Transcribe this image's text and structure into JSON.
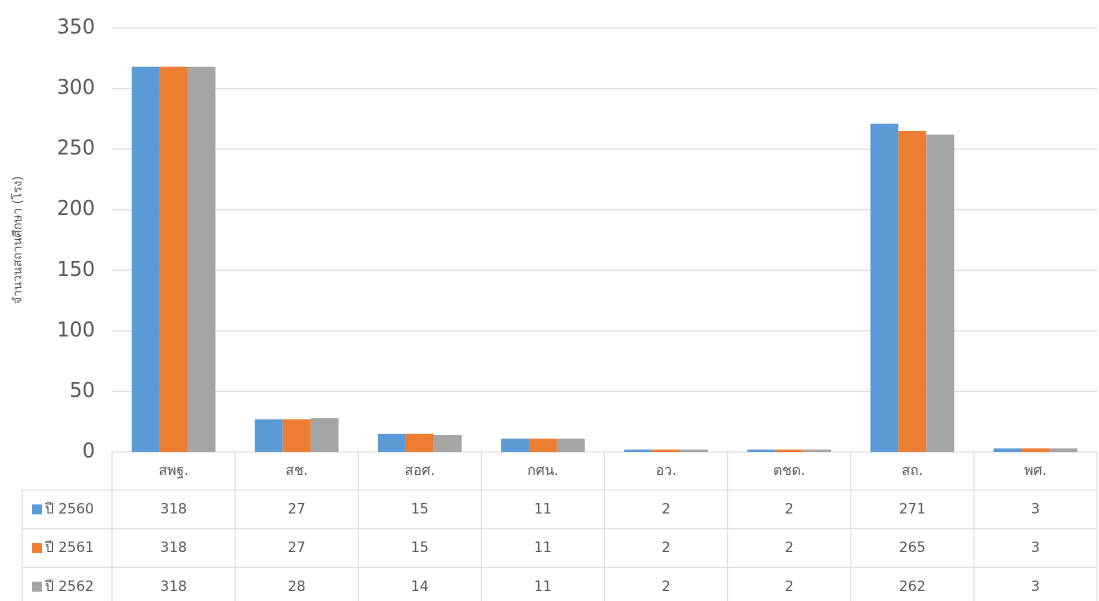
{
  "chart_data": {
    "type": "bar",
    "y_label": "จำนวนสถานศึกษา (โรง)",
    "categories": [
      "สพฐ.",
      "สช.",
      "สอศ.",
      "กศน.",
      "อว.",
      "ตชด.",
      "สถ.",
      "พศ."
    ],
    "series": [
      {
        "name": "ปี 2560",
        "color": "#5b9bd5",
        "values": [
          318,
          27,
          15,
          11,
          2,
          2,
          271,
          3
        ]
      },
      {
        "name": "ปี 2561",
        "color": "#ed7d31",
        "values": [
          318,
          27,
          15,
          11,
          2,
          2,
          265,
          3
        ]
      },
      {
        "name": "ปี 2562",
        "color": "#a5a5a5",
        "values": [
          318,
          28,
          14,
          11,
          2,
          2,
          262,
          3
        ]
      }
    ],
    "ylim": [
      0,
      350
    ],
    "yticks": [
      0,
      50,
      100,
      150,
      200,
      250,
      300,
      350
    ],
    "grid": true
  }
}
